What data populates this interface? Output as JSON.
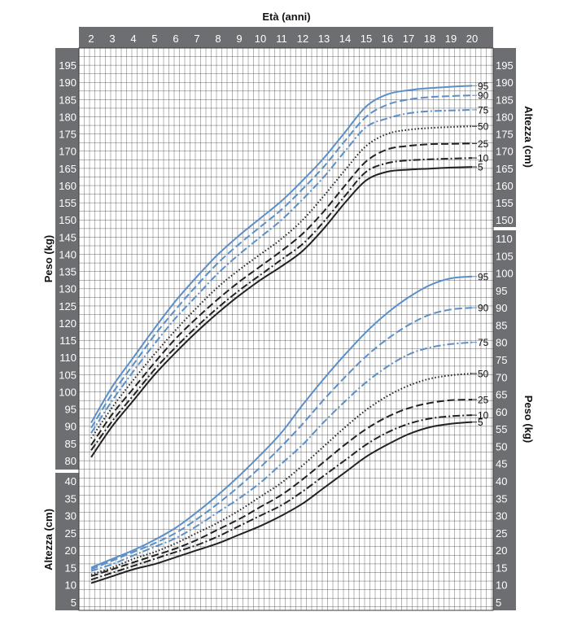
{
  "chart_data": {
    "type": "line",
    "title": "Età (anni)",
    "xlabel": "Età (anni)",
    "x_ticks": [
      "2",
      "3",
      "4",
      "5",
      "6",
      "7",
      "8",
      "9",
      "10",
      "11",
      "12",
      "13",
      "14",
      "15",
      "16",
      "17",
      "18",
      "19",
      "20"
    ],
    "xlim": [
      2,
      20
    ],
    "left_axis_labels": {
      "upper": "Peso (kg)",
      "lower": "Altezza (cm)"
    },
    "right_axis_labels": {
      "upper": "Altezza (cm)",
      "lower": "Peso (kg)"
    },
    "height_axis": {
      "label": "Altezza (cm)",
      "ticks": [
        "80",
        "85",
        "90",
        "95",
        "100",
        "105",
        "110",
        "115",
        "120",
        "125",
        "130",
        "135",
        "140",
        "145",
        "150",
        "155",
        "160",
        "165",
        "170",
        "175",
        "180",
        "185",
        "190",
        "195"
      ],
      "right_ticks": [
        "150",
        "155",
        "160",
        "165",
        "170",
        "175",
        "180",
        "185",
        "190",
        "195"
      ],
      "ylim": [
        78,
        199
      ]
    },
    "weight_axis": {
      "label": "Peso (kg)",
      "ticks": [
        "5",
        "10",
        "15",
        "20",
        "25",
        "30",
        "35",
        "40",
        "45",
        "50",
        "55",
        "60",
        "65",
        "70",
        "75",
        "80",
        "85",
        "90",
        "95",
        "100",
        "105",
        "110"
      ],
      "left_ticks": [
        "5",
        "10",
        "15",
        "20",
        "25",
        "30",
        "35",
        "40"
      ],
      "ylim": [
        1,
        113
      ]
    },
    "colors": {
      "blue": "#5a8fc8",
      "black": "#222222",
      "axis_band": "#6d6e71",
      "grid": "#3a3a3a"
    },
    "height_series": [
      {
        "name": "95",
        "color": "blue",
        "dash": "solid",
        "x": [
          2,
          3,
          4,
          5,
          6,
          7,
          8,
          9,
          10,
          11,
          12,
          13,
          14,
          15,
          16,
          17,
          18,
          19,
          20
        ],
        "values": [
          91,
          101.5,
          110,
          118.5,
          126.5,
          133.5,
          140,
          145.5,
          150.5,
          155.5,
          161.5,
          168,
          175.5,
          183,
          186.5,
          187.7,
          188.3,
          188.7,
          189
        ]
      },
      {
        "name": "90",
        "color": "blue",
        "dash": "dash",
        "x": [
          2,
          3,
          4,
          5,
          6,
          7,
          8,
          9,
          10,
          11,
          12,
          13,
          14,
          15,
          16,
          17,
          18,
          19,
          20
        ],
        "values": [
          89.5,
          99.5,
          108,
          116.5,
          124,
          131,
          137.5,
          143,
          148,
          153,
          159,
          165.5,
          173,
          180,
          183.5,
          185,
          185.7,
          186,
          186.2
        ]
      },
      {
        "name": "75",
        "color": "blue",
        "dash": "dashdot",
        "x": [
          2,
          3,
          4,
          5,
          6,
          7,
          8,
          9,
          10,
          11,
          12,
          13,
          14,
          15,
          16,
          17,
          18,
          19,
          20
        ],
        "values": [
          88,
          97.5,
          106,
          114,
          121.5,
          128,
          134.5,
          140,
          145,
          150,
          156,
          162.5,
          170,
          177,
          179.5,
          181,
          181.6,
          181.8,
          182
        ]
      },
      {
        "name": "50",
        "color": "black",
        "dash": "dot",
        "x": [
          2,
          3,
          4,
          5,
          6,
          7,
          8,
          9,
          10,
          11,
          12,
          13,
          14,
          15,
          16,
          17,
          18,
          19,
          20
        ],
        "values": [
          86.5,
          95.5,
          103.5,
          111,
          118,
          124.5,
          130.5,
          135.5,
          140,
          144.5,
          150,
          157,
          164.5,
          171.5,
          175,
          176.2,
          176.7,
          177,
          177.2
        ]
      },
      {
        "name": "25",
        "color": "black",
        "dash": "dash",
        "x": [
          2,
          3,
          4,
          5,
          6,
          7,
          8,
          9,
          10,
          11,
          12,
          13,
          14,
          15,
          16,
          17,
          18,
          19,
          20
        ],
        "values": [
          84.5,
          93.5,
          101,
          108.5,
          115.5,
          121.5,
          127,
          132,
          136.5,
          141,
          146,
          152.5,
          160,
          167,
          170.5,
          171.5,
          172,
          172.1,
          172.2
        ]
      },
      {
        "name": "10",
        "color": "black",
        "dash": "dashdot",
        "x": [
          2,
          3,
          4,
          5,
          6,
          7,
          8,
          9,
          10,
          11,
          12,
          13,
          14,
          15,
          16,
          17,
          18,
          19,
          20
        ],
        "values": [
          83,
          91.5,
          99,
          106.5,
          113,
          119,
          124.5,
          129.5,
          134,
          138.5,
          143,
          149.5,
          157,
          164,
          166.5,
          167.3,
          167.6,
          167.8,
          168
        ]
      },
      {
        "name": "5",
        "color": "black",
        "dash": "solid",
        "x": [
          2,
          3,
          4,
          5,
          6,
          7,
          8,
          9,
          10,
          11,
          12,
          13,
          14,
          15,
          16,
          17,
          18,
          19,
          20
        ],
        "values": [
          81,
          90,
          97.5,
          105,
          111.5,
          117.5,
          123,
          128,
          132.5,
          136.5,
          141,
          147.5,
          155,
          161.5,
          164,
          164.6,
          164.9,
          165.2,
          165.4
        ]
      }
    ],
    "weight_series": [
      {
        "name": "95",
        "color": "blue",
        "dash": "solid",
        "x": [
          2,
          3,
          4,
          5,
          6,
          7,
          8,
          9,
          10,
          11,
          12,
          13,
          14,
          15,
          16,
          17,
          18,
          19,
          20
        ],
        "values": [
          15,
          17.5,
          20,
          23,
          26.5,
          31,
          36,
          41.5,
          47.5,
          54,
          62,
          69.5,
          76.5,
          83,
          88.5,
          93,
          96.5,
          98.5,
          99
        ]
      },
      {
        "name": "90",
        "color": "blue",
        "dash": "dash",
        "x": [
          2,
          3,
          4,
          5,
          6,
          7,
          8,
          9,
          10,
          11,
          12,
          13,
          14,
          15,
          16,
          17,
          18,
          19,
          20
        ],
        "values": [
          14.5,
          17,
          19.5,
          22,
          25,
          29,
          33.5,
          38.5,
          44,
          50,
          56.5,
          63.5,
          70,
          76,
          81,
          85,
          88,
          89.5,
          90
        ]
      },
      {
        "name": "75",
        "color": "blue",
        "dash": "dashdot",
        "x": [
          2,
          3,
          4,
          5,
          6,
          7,
          8,
          9,
          10,
          11,
          12,
          13,
          14,
          15,
          16,
          17,
          18,
          19,
          20
        ],
        "values": [
          14,
          16,
          18.5,
          21,
          23.5,
          27,
          31,
          35,
          39.5,
          45,
          50.5,
          57,
          63,
          68.5,
          73,
          76.5,
          78.5,
          79.5,
          80
        ]
      },
      {
        "name": "50",
        "color": "black",
        "dash": "dot",
        "x": [
          2,
          3,
          4,
          5,
          6,
          7,
          8,
          9,
          10,
          11,
          12,
          13,
          14,
          15,
          16,
          17,
          18,
          19,
          20
        ],
        "values": [
          13,
          15,
          17.5,
          19.5,
          22,
          25,
          28,
          31.5,
          35.5,
          39.5,
          44.5,
          50,
          55.5,
          60.5,
          64.5,
          67.5,
          69.5,
          70.5,
          71
        ]
      },
      {
        "name": "25",
        "color": "black",
        "dash": "dash",
        "x": [
          2,
          3,
          4,
          5,
          6,
          7,
          8,
          9,
          10,
          11,
          12,
          13,
          14,
          15,
          16,
          17,
          18,
          19,
          20
        ],
        "values": [
          12.5,
          14.5,
          16.5,
          18.5,
          20.5,
          23,
          26,
          29,
          32.5,
          36,
          40.5,
          45.5,
          50.5,
          55,
          58.5,
          61,
          62.5,
          63.3,
          63.5
        ]
      },
      {
        "name": "10",
        "color": "black",
        "dash": "dashdot",
        "x": [
          2,
          3,
          4,
          5,
          6,
          7,
          8,
          9,
          10,
          11,
          12,
          13,
          14,
          15,
          16,
          17,
          18,
          19,
          20
        ],
        "values": [
          11.5,
          13.5,
          15.5,
          17.5,
          19.5,
          21.5,
          24,
          27,
          30,
          33,
          37,
          41.5,
          46,
          50.5,
          54,
          56.5,
          58,
          58.7,
          59
        ]
      },
      {
        "name": "5",
        "color": "black",
        "dash": "solid",
        "x": [
          2,
          3,
          4,
          5,
          6,
          7,
          8,
          9,
          10,
          11,
          12,
          13,
          14,
          15,
          16,
          17,
          18,
          19,
          20
        ],
        "values": [
          10.5,
          12.5,
          14.5,
          16,
          18,
          20,
          22,
          24.5,
          27,
          30,
          33.5,
          38,
          42.5,
          47,
          50.5,
          53.5,
          55.5,
          56.5,
          57
        ]
      }
    ],
    "grid": true
  }
}
